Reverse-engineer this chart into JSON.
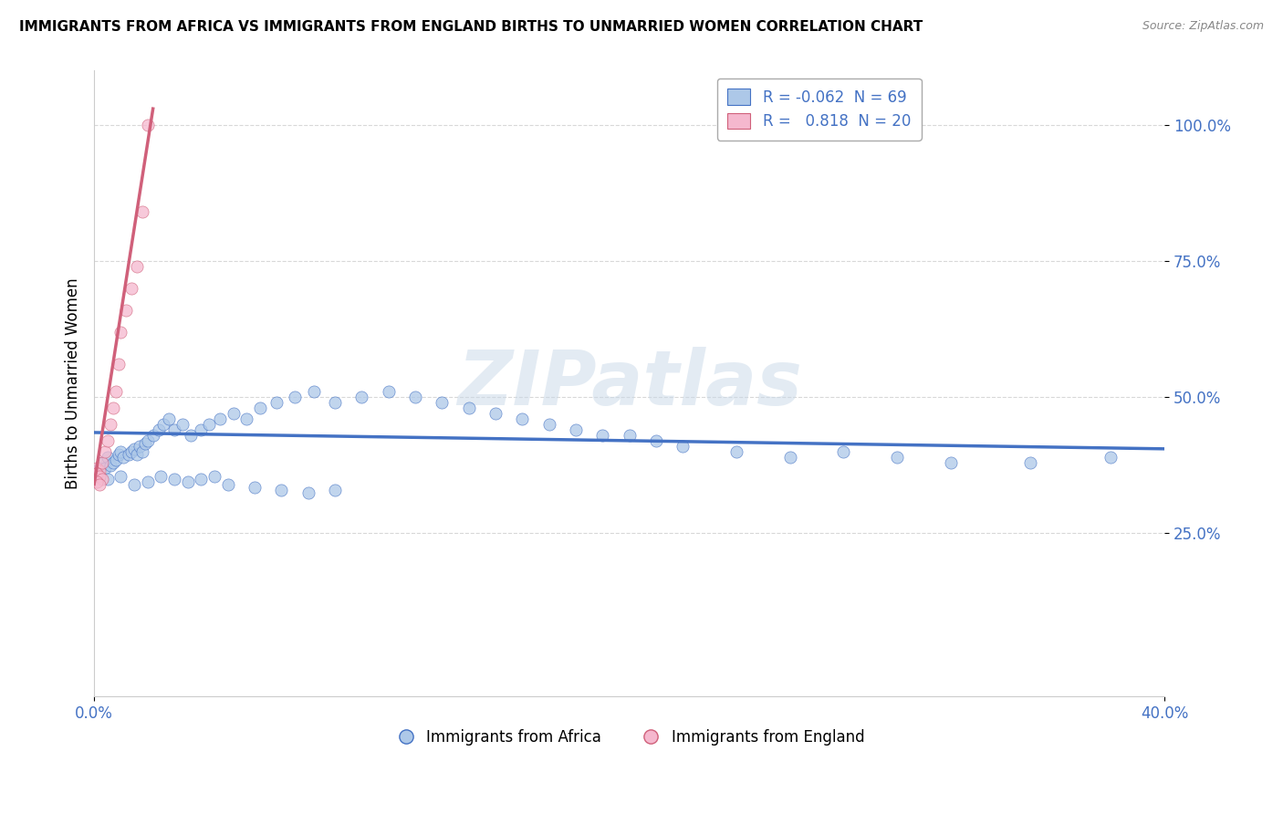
{
  "title": "IMMIGRANTS FROM AFRICA VS IMMIGRANTS FROM ENGLAND BIRTHS TO UNMARRIED WOMEN CORRELATION CHART",
  "source": "Source: ZipAtlas.com",
  "ylabel": "Births to Unmarried Women",
  "xlim": [
    0.0,
    0.4
  ],
  "ylim": [
    -0.05,
    1.1
  ],
  "ytick_vals": [
    0.25,
    0.5,
    0.75,
    1.0
  ],
  "ytick_labels": [
    "25.0%",
    "50.0%",
    "75.0%",
    "100.0%"
  ],
  "xtick_vals": [
    0.0,
    0.4
  ],
  "xtick_labels": [
    "0.0%",
    "40.0%"
  ],
  "blue_scatter_x": [
    0.002,
    0.003,
    0.004,
    0.005,
    0.006,
    0.007,
    0.008,
    0.009,
    0.01,
    0.011,
    0.013,
    0.014,
    0.015,
    0.016,
    0.017,
    0.018,
    0.019,
    0.02,
    0.022,
    0.024,
    0.026,
    0.028,
    0.03,
    0.033,
    0.036,
    0.04,
    0.043,
    0.047,
    0.052,
    0.057,
    0.062,
    0.068,
    0.075,
    0.082,
    0.09,
    0.1,
    0.11,
    0.12,
    0.13,
    0.14,
    0.15,
    0.16,
    0.17,
    0.18,
    0.19,
    0.2,
    0.21,
    0.22,
    0.24,
    0.26,
    0.28,
    0.3,
    0.32,
    0.35,
    0.38,
    0.005,
    0.01,
    0.015,
    0.02,
    0.025,
    0.03,
    0.035,
    0.04,
    0.045,
    0.05,
    0.06,
    0.07,
    0.08,
    0.09
  ],
  "blue_scatter_y": [
    0.37,
    0.38,
    0.37,
    0.39,
    0.375,
    0.38,
    0.385,
    0.395,
    0.4,
    0.39,
    0.395,
    0.4,
    0.405,
    0.395,
    0.41,
    0.4,
    0.415,
    0.42,
    0.43,
    0.44,
    0.45,
    0.46,
    0.44,
    0.45,
    0.43,
    0.44,
    0.45,
    0.46,
    0.47,
    0.46,
    0.48,
    0.49,
    0.5,
    0.51,
    0.49,
    0.5,
    0.51,
    0.5,
    0.49,
    0.48,
    0.47,
    0.46,
    0.45,
    0.44,
    0.43,
    0.43,
    0.42,
    0.41,
    0.4,
    0.39,
    0.4,
    0.39,
    0.38,
    0.38,
    0.39,
    0.35,
    0.355,
    0.34,
    0.345,
    0.355,
    0.35,
    0.345,
    0.35,
    0.355,
    0.34,
    0.335,
    0.33,
    0.325,
    0.33
  ],
  "pink_scatter_x": [
    0.001,
    0.002,
    0.003,
    0.004,
    0.005,
    0.006,
    0.007,
    0.008,
    0.009,
    0.01,
    0.012,
    0.014,
    0.016,
    0.018,
    0.02,
    0.001,
    0.002,
    0.003,
    0.001,
    0.002
  ],
  "pink_scatter_y": [
    0.37,
    0.365,
    0.38,
    0.4,
    0.42,
    0.45,
    0.48,
    0.51,
    0.56,
    0.62,
    0.66,
    0.7,
    0.74,
    0.84,
    1.0,
    0.36,
    0.355,
    0.35,
    0.345,
    0.34
  ],
  "blue_line_x": [
    0.0,
    0.4
  ],
  "blue_line_y": [
    0.435,
    0.405
  ],
  "pink_line_x": [
    0.0,
    0.022
  ],
  "pink_line_y": [
    0.34,
    1.03
  ],
  "blue_color": "#adc8e8",
  "pink_color": "#f5b8ce",
  "blue_line_color": "#4472c4",
  "pink_line_color": "#d0607a",
  "legend_R_blue": "-0.062",
  "legend_N_blue": "69",
  "legend_R_pink": "0.818",
  "legend_N_pink": "20",
  "watermark": "ZIPatlas",
  "legend_label_blue": "Immigrants from Africa",
  "legend_label_pink": "Immigrants from England",
  "background_color": "#ffffff",
  "grid_color": "#d8d8d8"
}
